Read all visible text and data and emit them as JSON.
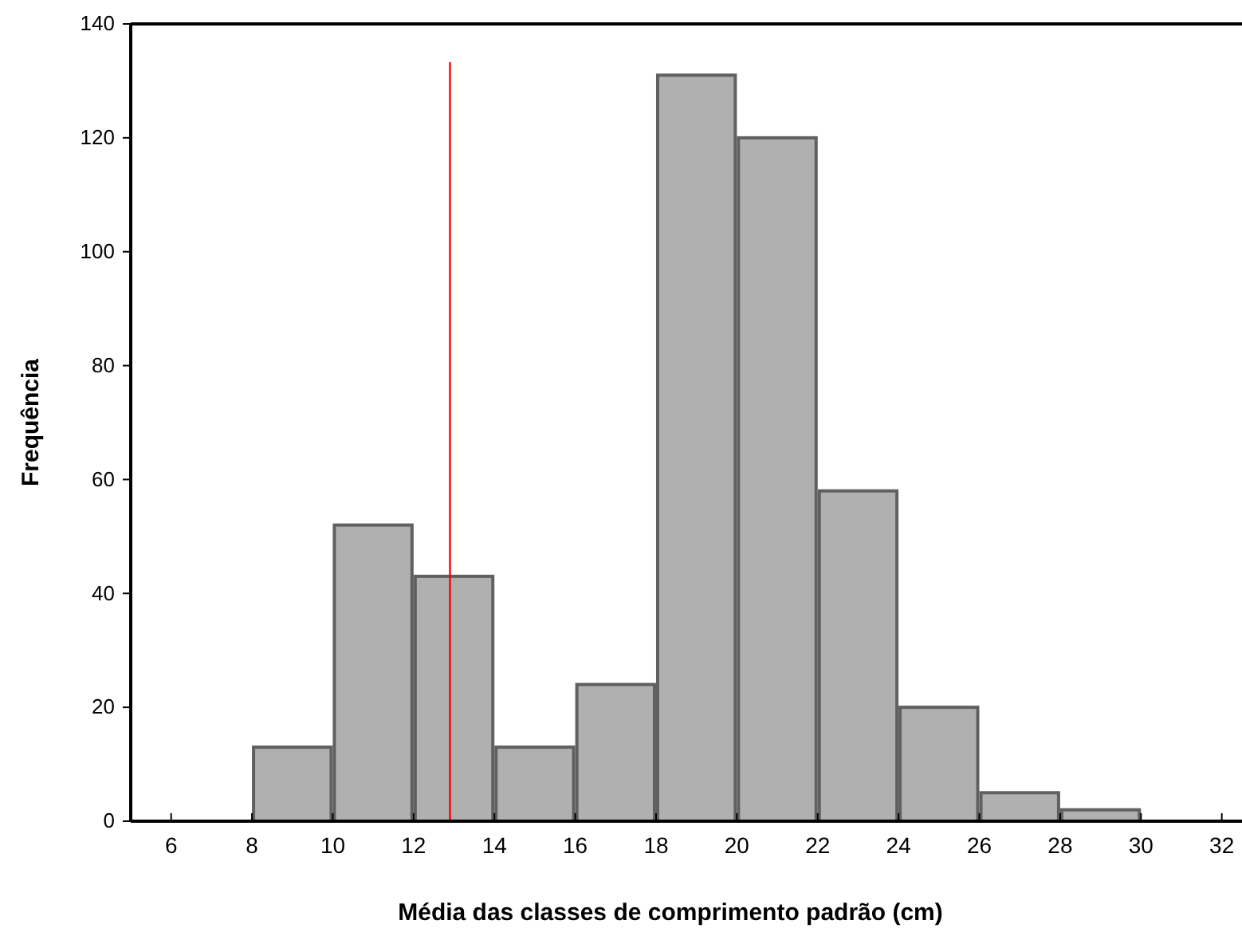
{
  "chart_data": {
    "type": "histogram",
    "xlabel": "Média das classes de comprimento padrão (cm)",
    "ylabel": "Frequência",
    "bins": [
      8,
      10,
      12,
      14,
      16,
      18,
      20,
      22,
      24,
      26,
      28,
      30
    ],
    "values": [
      13,
      52,
      43,
      13,
      24,
      131,
      120,
      58,
      20,
      5,
      2
    ],
    "color": "#b0b0b0",
    "xlim": [
      5,
      32.5
    ],
    "xticks": [
      6,
      8,
      10,
      12,
      14,
      16,
      18,
      20,
      22,
      24,
      26,
      28,
      30,
      32
    ],
    "ylim": [
      0,
      140
    ],
    "yticks": [
      0,
      20,
      40,
      60,
      80,
      100,
      120,
      140
    ],
    "ref_lines": [
      {
        "axis": "x",
        "value": 12.9,
        "color": "#ff0000"
      }
    ],
    "grid": false
  }
}
